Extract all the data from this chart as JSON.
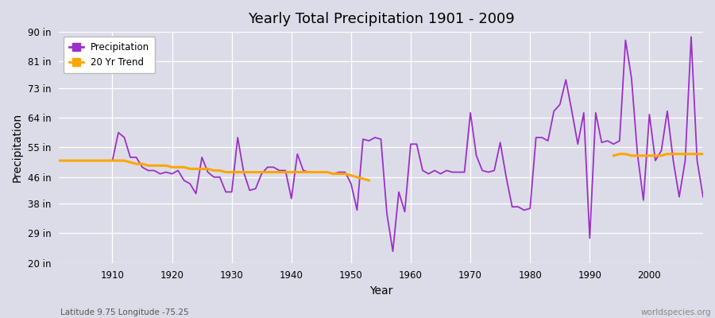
{
  "title": "Yearly Total Precipitation 1901 - 2009",
  "xlabel": "Year",
  "ylabel": "Precipitation",
  "subtitle": "Latitude 9.75 Longitude -75.25",
  "watermark": "worldspecies.org",
  "precip_color": "#9B30C8",
  "trend_color": "#FFA500",
  "bg_color": "#DCDCE8",
  "ylim": [
    20,
    90
  ],
  "yticks": [
    20,
    29,
    38,
    46,
    55,
    64,
    73,
    81,
    90
  ],
  "ytick_labels": [
    "20 in",
    "29 in",
    "38 in",
    "46 in",
    "55 in",
    "64 in",
    "73 in",
    "81 in",
    "90 in"
  ],
  "years": [
    1901,
    1902,
    1903,
    1904,
    1905,
    1906,
    1907,
    1908,
    1909,
    1910,
    1911,
    1912,
    1913,
    1914,
    1915,
    1916,
    1917,
    1918,
    1919,
    1920,
    1921,
    1922,
    1923,
    1924,
    1925,
    1926,
    1927,
    1928,
    1929,
    1930,
    1931,
    1932,
    1933,
    1934,
    1935,
    1936,
    1937,
    1938,
    1939,
    1940,
    1941,
    1942,
    1943,
    1944,
    1945,
    1946,
    1947,
    1948,
    1949,
    1950,
    1951,
    1952,
    1953,
    1954,
    1955,
    1956,
    1957,
    1958,
    1959,
    1960,
    1961,
    1962,
    1963,
    1964,
    1965,
    1966,
    1967,
    1968,
    1969,
    1970,
    1971,
    1972,
    1973,
    1974,
    1975,
    1976,
    1977,
    1978,
    1979,
    1980,
    1981,
    1982,
    1983,
    1984,
    1985,
    1986,
    1987,
    1988,
    1989,
    1990,
    1991,
    1992,
    1993,
    1994,
    1995,
    1996,
    1997,
    1998,
    1999,
    2000,
    2001,
    2002,
    2003,
    2004,
    2005,
    2006,
    2007,
    2008,
    2009
  ],
  "precip": [
    51.0,
    51.0,
    51.0,
    51.0,
    51.0,
    51.0,
    51.0,
    51.0,
    51.0,
    51.0,
    59.5,
    58.0,
    52.0,
    52.0,
    49.0,
    48.0,
    48.0,
    47.0,
    47.5,
    47.0,
    48.0,
    45.0,
    44.0,
    41.0,
    52.0,
    47.5,
    46.0,
    46.0,
    41.5,
    41.5,
    58.0,
    47.5,
    42.0,
    42.5,
    47.0,
    49.0,
    49.0,
    48.0,
    48.0,
    39.5,
    53.0,
    48.0,
    47.5,
    47.5,
    47.5,
    47.5,
    47.0,
    47.5,
    47.5,
    44.0,
    36.0,
    57.5,
    57.0,
    58.0,
    57.5,
    35.0,
    23.5,
    41.5,
    35.5,
    56.0,
    56.0,
    48.0,
    47.0,
    48.0,
    47.0,
    48.0,
    47.5,
    47.5,
    47.5,
    65.5,
    52.5,
    48.0,
    47.5,
    48.0,
    56.5,
    46.0,
    37.0,
    37.0,
    36.0,
    36.5,
    58.0,
    58.0,
    57.0,
    66.0,
    68.0,
    75.5,
    66.0,
    56.0,
    65.5,
    27.5,
    65.5,
    56.5,
    57.0,
    56.0,
    57.0,
    87.5,
    76.0,
    53.0,
    39.0,
    65.0,
    51.0,
    54.0,
    66.0,
    51.0,
    40.0,
    51.0,
    88.5,
    51.0,
    40.0
  ],
  "trend_years": [
    1901,
    1902,
    1903,
    1904,
    1905,
    1906,
    1907,
    1908,
    1909,
    1910,
    1911,
    1912,
    1913,
    1914,
    1915,
    1916,
    1917,
    1918,
    1919,
    1920,
    1921,
    1922,
    1923,
    1924,
    1925,
    1926,
    1927,
    1928,
    1929,
    1930,
    1931,
    1932,
    1933,
    1934,
    1935,
    1936,
    1937,
    1938,
    1939,
    1940,
    1941,
    1942,
    1943,
    1944,
    1945,
    1946,
    1947,
    1948,
    1949,
    1950,
    1951,
    1952,
    1953,
    1994,
    1995,
    1996,
    1997,
    1998,
    1999,
    2000,
    2001,
    2002,
    2003,
    2004,
    2005,
    2006,
    2007,
    2008,
    2009
  ],
  "trend": [
    51.0,
    51.0,
    51.0,
    51.0,
    51.0,
    51.0,
    51.0,
    51.0,
    51.0,
    51.0,
    51.0,
    51.0,
    50.5,
    50.0,
    50.0,
    49.5,
    49.5,
    49.5,
    49.5,
    49.0,
    49.0,
    49.0,
    48.5,
    48.5,
    48.5,
    48.5,
    48.0,
    48.0,
    47.5,
    47.5,
    47.5,
    47.5,
    47.5,
    47.5,
    47.5,
    47.5,
    47.5,
    47.5,
    47.5,
    47.5,
    47.5,
    47.5,
    47.5,
    47.5,
    47.5,
    47.5,
    47.0,
    47.0,
    47.0,
    46.5,
    46.0,
    45.5,
    45.0,
    52.5,
    53.0,
    53.0,
    52.5,
    52.5,
    52.5,
    52.5,
    52.5,
    52.5,
    53.0,
    53.0,
    53.0,
    53.0,
    53.0,
    53.0,
    53.0
  ]
}
